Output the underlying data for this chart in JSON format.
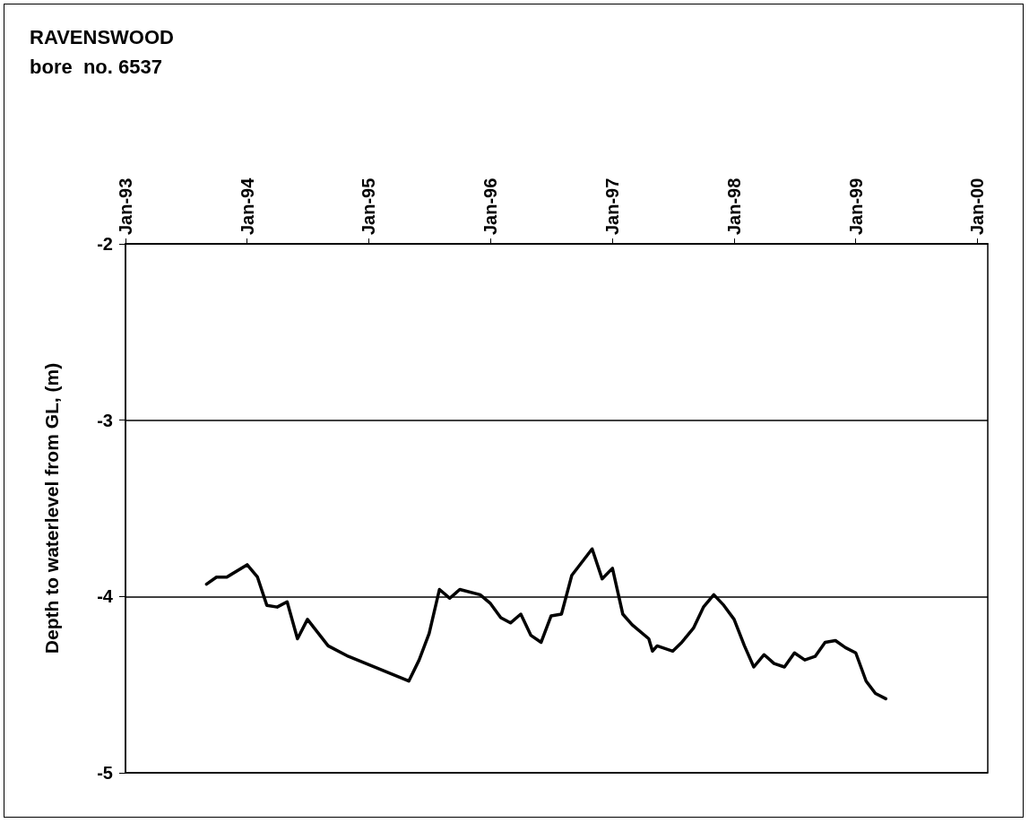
{
  "chart_data": {
    "type": "line",
    "title": "RAVENSWOOD",
    "subtitle": "bore  no. 6537",
    "ylabel": "Depth to waterlevel from GL, (m)",
    "x": [
      "1993-09",
      "1993-10",
      "1993-11",
      "1994-01",
      "1994-02",
      "1994-03",
      "1994-04",
      "1994-05",
      "1994-06",
      "1994-07",
      "1994-09",
      "1994-11",
      "1995-05",
      "1995-06",
      "1995-07",
      "1995-08",
      "1995-09",
      "1995-10",
      "1995-12",
      "1996-01",
      "1996-02",
      "1996-03",
      "1996-04",
      "1996-05",
      "1996-06",
      "1996-07",
      "1996-08",
      "1996-09",
      "1996-11",
      "1996-12",
      "1997-01",
      "1997-02",
      "1997-03",
      "1997-04-20",
      "1997-05-01",
      "1997-05-15",
      "1997-07",
      "1997-07-28",
      "1997-09",
      "1997-10",
      "1997-11",
      "1997-12",
      "1998-01",
      "1998-02",
      "1998-03",
      "1998-04",
      "1998-05",
      "1998-06",
      "1998-07",
      "1998-08",
      "1998-09",
      "1998-10",
      "1998-11",
      "1998-12",
      "1999-01",
      "1999-02",
      "1999-03",
      "1999-04"
    ],
    "series": [
      {
        "color": "#000000",
        "values": [
          -3.93,
          -3.89,
          -3.89,
          -3.82,
          -3.89,
          -4.05,
          -4.06,
          -4.03,
          -4.24,
          -4.13,
          -4.28,
          -4.34,
          -4.48,
          -4.36,
          -4.21,
          -3.96,
          -4.01,
          -3.96,
          -3.99,
          -4.04,
          -4.12,
          -4.15,
          -4.1,
          -4.22,
          -4.26,
          -4.11,
          -4.1,
          -3.88,
          -3.73,
          -3.9,
          -3.84,
          -4.1,
          -4.16,
          -4.24,
          -4.31,
          -4.28,
          -4.31,
          -4.26,
          -4.18,
          -4.06,
          -3.99,
          -4.05,
          -4.13,
          -4.28,
          -4.4,
          -4.33,
          -4.38,
          -4.4,
          -4.32,
          -4.36,
          -4.34,
          -4.26,
          -4.25,
          -4.29,
          -4.32,
          -4.48,
          -4.55,
          -4.58
        ]
      }
    ],
    "xlim": [
      "1993-01",
      "2000-02"
    ],
    "xticks": [
      {
        "value": "1993-01",
        "label": "Jan-93"
      },
      {
        "value": "1994-01",
        "label": "Jan-94"
      },
      {
        "value": "1995-01",
        "label": "Jan-95"
      },
      {
        "value": "1996-01",
        "label": "Jan-96"
      },
      {
        "value": "1997-01",
        "label": "Jan-97"
      },
      {
        "value": "1998-01",
        "label": "Jan-98"
      },
      {
        "value": "1999-01",
        "label": "Jan-99"
      },
      {
        "value": "2000-01",
        "label": "Jan-00"
      }
    ],
    "ylim": [
      -5,
      -2
    ],
    "yticks": [
      -5,
      -4,
      -3,
      -2
    ],
    "grid": "y",
    "marker": "none",
    "line_style": "solid"
  }
}
